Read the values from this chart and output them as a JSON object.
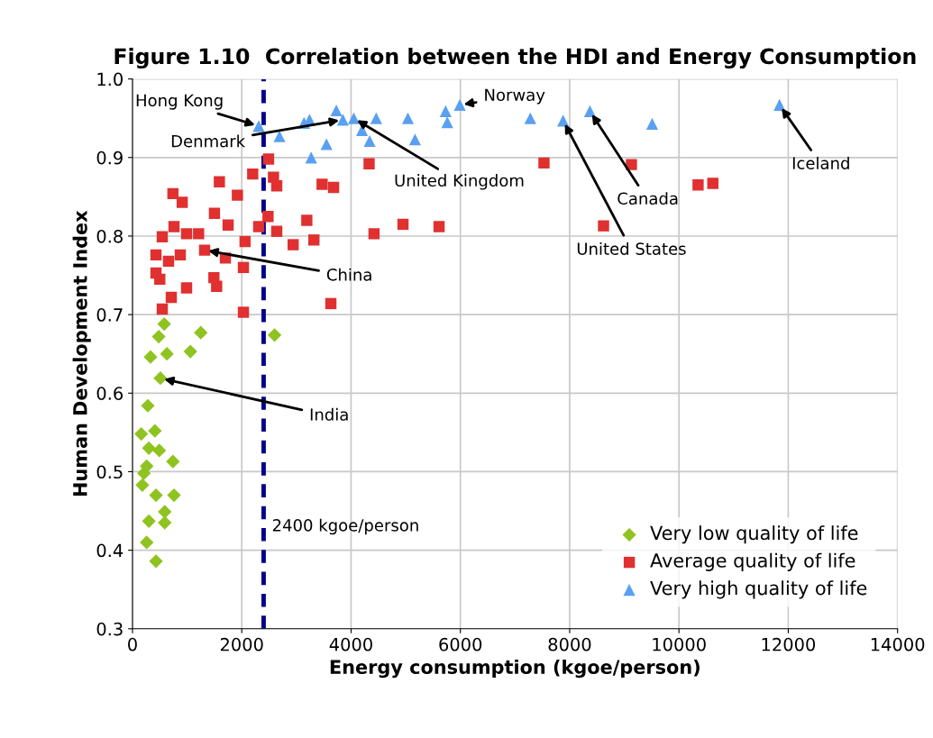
{
  "chart_data": {
    "type": "scatter",
    "title": "Figure 1.10  Correlation between the HDI and Energy Consumption",
    "xlabel": "Energy consumption (kgoe/person)",
    "ylabel": "Human Development Index",
    "xlim": [
      0,
      14000
    ],
    "xticks": [
      0,
      2000,
      4000,
      6000,
      8000,
      10000,
      12000,
      14000
    ],
    "ylim": [
      0.3,
      1.0
    ],
    "yticks": [
      {
        "value": 0.3,
        "label": "0.3"
      },
      {
        "value": 0.4,
        "label": "0.4"
      },
      {
        "value": 0.5,
        "label": "0.5"
      },
      {
        "value": 0.6,
        "label": "0.6"
      },
      {
        "value": 0.7,
        "label": "0.7"
      },
      {
        "value": 0.8,
        "label": "0.8"
      },
      {
        "value": 0.9,
        "label": "0.9"
      },
      {
        "value": 1.0,
        "label": "1.0"
      }
    ],
    "grid": true,
    "legend": "bottom right",
    "series": [
      {
        "name": "Very low quality of life",
        "color": "#8fc31f",
        "marker": "diamond",
        "x": [
          580,
          480,
          1250,
          330,
          630,
          1060,
          510,
          2600,
          280,
          160,
          410,
          300,
          490,
          740,
          260,
          210,
          180,
          430,
          760,
          590,
          300,
          590,
          260,
          430
        ],
        "values": [
          0.688,
          0.672,
          0.677,
          0.646,
          0.65,
          0.653,
          0.619,
          0.674,
          0.584,
          0.548,
          0.552,
          0.53,
          0.527,
          0.513,
          0.507,
          0.498,
          0.483,
          0.47,
          0.47,
          0.449,
          0.437,
          0.435,
          0.41,
          0.386
        ]
      },
      {
        "name": "Average quality of life",
        "color": "#e03030",
        "marker": "square",
        "x": [
          2490,
          2200,
          2580,
          2640,
          1590,
          1920,
          740,
          910,
          3470,
          3680,
          4330,
          1500,
          1750,
          2480,
          2640,
          2310,
          3190,
          4420,
          4950,
          2940,
          3320,
          2060,
          1210,
          990,
          760,
          545,
          430,
          875,
          1320,
          1700,
          2030,
          1490,
          1540,
          990,
          500,
          710,
          545,
          2030,
          3630,
          430,
          660,
          5610,
          7530,
          9130,
          8620,
          10350,
          10620
        ],
        "values": [
          0.898,
          0.879,
          0.875,
          0.864,
          0.869,
          0.852,
          0.854,
          0.843,
          0.866,
          0.862,
          0.892,
          0.829,
          0.814,
          0.825,
          0.806,
          0.812,
          0.82,
          0.803,
          0.815,
          0.789,
          0.795,
          0.793,
          0.803,
          0.803,
          0.812,
          0.799,
          0.776,
          0.776,
          0.782,
          0.772,
          0.76,
          0.747,
          0.736,
          0.734,
          0.745,
          0.722,
          0.707,
          0.703,
          0.714,
          0.753,
          0.768,
          0.812,
          0.893,
          0.891,
          0.813,
          0.865,
          0.867
        ]
      },
      {
        "name": "Very high quality of life",
        "color": "#5aa0f0",
        "marker": "triangle",
        "x": [
          2310,
          2690,
          3140,
          3240,
          3270,
          3550,
          3730,
          4050,
          3850,
          4460,
          4340,
          5040,
          5170,
          4200,
          5730,
          5760,
          5990,
          7280,
          7880,
          8370,
          9510,
          11840
        ],
        "values": [
          0.94,
          0.927,
          0.944,
          0.948,
          0.9,
          0.917,
          0.96,
          0.95,
          0.948,
          0.95,
          0.921,
          0.95,
          0.923,
          0.935,
          0.959,
          0.945,
          0.967,
          0.95,
          0.947,
          0.959,
          0.943,
          0.967
        ]
      }
    ],
    "ref_lines": [
      {
        "axis": "x",
        "value": 2400,
        "label": "2400 kgoe/person",
        "color": "#00008b",
        "line_style": "dashed"
      }
    ],
    "annotations": [
      {
        "text": "Hong Kong",
        "x": 2310,
        "y": 0.94
      },
      {
        "text": "Denmark",
        "x": 3850,
        "y": 0.948
      },
      {
        "text": "United Kingdom",
        "x": 4050,
        "y": 0.95
      },
      {
        "text": "China",
        "x": 1320,
        "y": 0.782
      },
      {
        "text": "India",
        "x": 510,
        "y": 0.619
      },
      {
        "text": "Norway",
        "x": 5990,
        "y": 0.967
      },
      {
        "text": "United States",
        "x": 7880,
        "y": 0.947
      },
      {
        "text": "Canada",
        "x": 8370,
        "y": 0.959
      },
      {
        "text": "Iceland",
        "x": 11840,
        "y": 0.967
      }
    ]
  }
}
